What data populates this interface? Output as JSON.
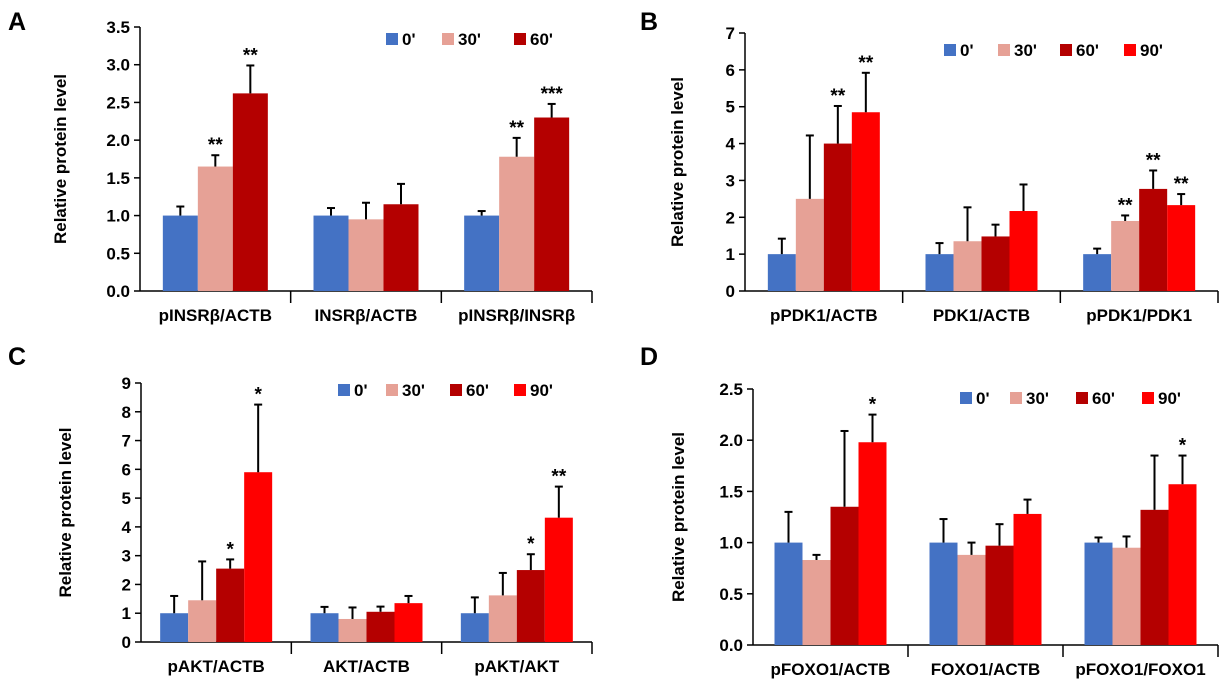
{
  "colors": {
    "0'": "#4472C4",
    "30'": "#E6A196",
    "60'": "#B40000",
    "90'": "#FF0000"
  },
  "chart_data": [
    {
      "panel": "A",
      "type": "bar",
      "ylabel": "Relative protein level",
      "ylim": [
        0,
        3.5
      ],
      "yticks": [
        "0.0",
        "0.5",
        "1.0",
        "1.5",
        "2.0",
        "2.5",
        "3.0",
        "3.5"
      ],
      "legend_position": "top-right",
      "categories": [
        "pINSRβ/ACTB",
        "INSRβ/ACTB",
        "pINSRβ/INSRβ"
      ],
      "series": [
        {
          "name": "0'",
          "values": [
            1.0,
            1.0,
            1.0
          ],
          "errors": [
            0.12,
            0.1,
            0.06
          ],
          "significance": [
            "",
            "",
            ""
          ]
        },
        {
          "name": "30'",
          "values": [
            1.65,
            0.95,
            1.78
          ],
          "errors": [
            0.15,
            0.22,
            0.25
          ],
          "significance": [
            "**",
            "",
            "**"
          ]
        },
        {
          "name": "60'",
          "values": [
            2.62,
            1.15,
            2.3
          ],
          "errors": [
            0.37,
            0.27,
            0.18
          ],
          "significance": [
            "**",
            "",
            "***"
          ]
        }
      ]
    },
    {
      "panel": "B",
      "type": "bar",
      "ylabel": "Relative protein level",
      "ylim": [
        0,
        7
      ],
      "yticks": [
        "0",
        "1",
        "2",
        "3",
        "4",
        "5",
        "6",
        "7"
      ],
      "legend_position": "top-right",
      "categories": [
        "pPDK1/ACTB",
        "PDK1/ACTB",
        "pPDK1/PDK1"
      ],
      "series": [
        {
          "name": "0'",
          "values": [
            1.0,
            1.0,
            1.0
          ],
          "errors": [
            0.42,
            0.3,
            0.15
          ],
          "significance": [
            "",
            "",
            ""
          ]
        },
        {
          "name": "30'",
          "values": [
            2.5,
            1.35,
            1.9
          ],
          "errors": [
            1.72,
            0.92,
            0.15
          ],
          "significance": [
            "",
            "",
            "**"
          ]
        },
        {
          "name": "60'",
          "values": [
            4.0,
            1.48,
            2.77
          ],
          "errors": [
            1.02,
            0.32,
            0.5
          ],
          "significance": [
            "**",
            "",
            "**"
          ]
        },
        {
          "name": "90'",
          "values": [
            4.85,
            2.17,
            2.33
          ],
          "errors": [
            1.07,
            0.72,
            0.3
          ],
          "significance": [
            "**",
            "",
            "**"
          ]
        }
      ]
    },
    {
      "panel": "C",
      "type": "bar",
      "ylabel": "Relative protein level",
      "ylim": [
        0,
        9
      ],
      "yticks": [
        "0",
        "1",
        "2",
        "3",
        "4",
        "5",
        "6",
        "7",
        "8",
        "9"
      ],
      "legend_position": "top-right",
      "categories": [
        "pAKT/ACTB",
        "AKT/ACTB",
        "pAKT/AKT"
      ],
      "series": [
        {
          "name": "0'",
          "values": [
            1.0,
            1.0,
            1.0
          ],
          "errors": [
            0.6,
            0.22,
            0.55
          ],
          "significance": [
            "",
            "",
            ""
          ]
        },
        {
          "name": "30'",
          "values": [
            1.45,
            0.8,
            1.62
          ],
          "errors": [
            1.35,
            0.4,
            0.78
          ],
          "significance": [
            "",
            "",
            ""
          ]
        },
        {
          "name": "60'",
          "values": [
            2.55,
            1.05,
            2.5
          ],
          "errors": [
            0.32,
            0.18,
            0.55
          ],
          "significance": [
            "*",
            "",
            "*"
          ]
        },
        {
          "name": "90'",
          "values": [
            5.9,
            1.35,
            4.32
          ],
          "errors": [
            2.35,
            0.25,
            1.08
          ],
          "significance": [
            "*",
            "",
            "**"
          ]
        }
      ]
    },
    {
      "panel": "D",
      "type": "bar",
      "ylabel": "Relative protein level",
      "ylim": [
        0,
        2.5
      ],
      "yticks": [
        "0.0",
        "0.5",
        "1.0",
        "1.5",
        "2.0",
        "2.5"
      ],
      "legend_position": "top-right",
      "categories": [
        "pFOXO1/ACTB",
        "FOXO1/ACTB",
        "pFOXO1/FOXO1"
      ],
      "series": [
        {
          "name": "0'",
          "values": [
            1.0,
            1.0,
            1.0
          ],
          "errors": [
            0.3,
            0.23,
            0.05
          ],
          "significance": [
            "",
            "",
            ""
          ]
        },
        {
          "name": "30'",
          "values": [
            0.83,
            0.88,
            0.95
          ],
          "errors": [
            0.05,
            0.12,
            0.11
          ],
          "significance": [
            "",
            "",
            ""
          ]
        },
        {
          "name": "60'",
          "values": [
            1.35,
            0.97,
            1.32
          ],
          "errors": [
            0.74,
            0.21,
            0.53
          ],
          "significance": [
            "",
            "",
            ""
          ]
        },
        {
          "name": "90'",
          "values": [
            1.98,
            1.28,
            1.57
          ],
          "errors": [
            0.27,
            0.14,
            0.28
          ],
          "significance": [
            "*",
            "",
            "*"
          ]
        }
      ]
    }
  ]
}
